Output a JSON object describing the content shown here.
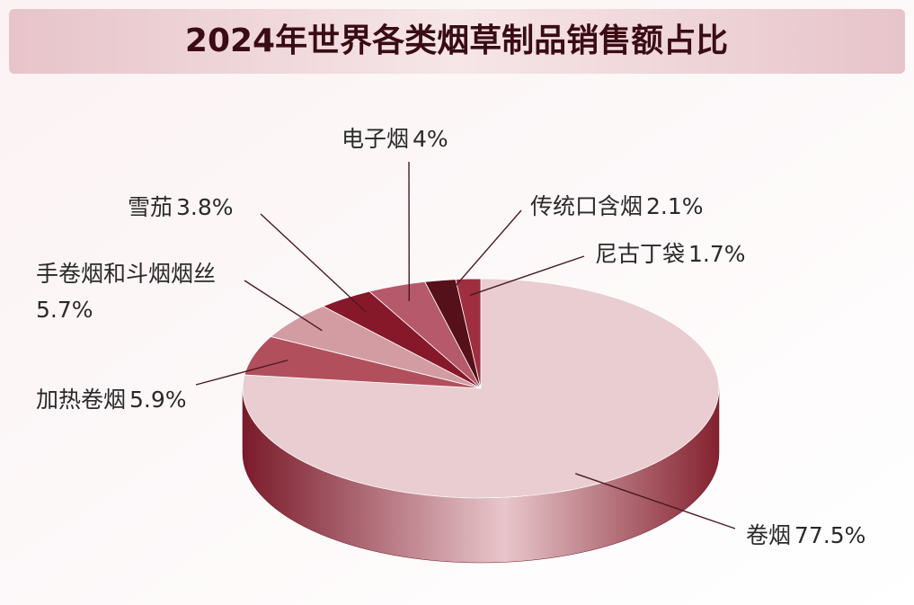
{
  "chart_data": {
    "type": "pie",
    "title": "2024年世界各类烟草制品销售额占比",
    "categories": [
      "卷烟",
      "加热卷烟",
      "手卷烟和斗烟烟丝",
      "雪茄",
      "电子烟",
      "传统口含烟",
      "尼古丁袋"
    ],
    "values": [
      77.5,
      5.9,
      5.7,
      3.8,
      4,
      2.1,
      1.7
    ],
    "value_labels": [
      "77.5%",
      "5.9%",
      "5.7%",
      "3.8%",
      "4%",
      "2.1%",
      "1.7%"
    ],
    "colors": [
      "#e9cdd1",
      "#b24f5c",
      "#d39ba2",
      "#86182a",
      "#b6596a",
      "#561019",
      "#9e2e40"
    ]
  }
}
